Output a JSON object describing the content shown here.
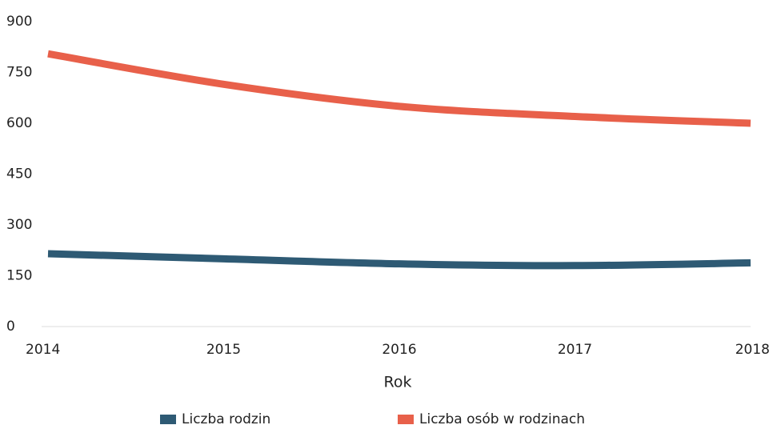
{
  "chart_data": {
    "type": "line",
    "x_label": "Rok",
    "categories": [
      "2014",
      "2015",
      "2016",
      "2017",
      "2018"
    ],
    "series": [
      {
        "name": "Liczba rodzin",
        "color": "#2e5a74",
        "values": [
          215,
          200,
          185,
          180,
          188
        ]
      },
      {
        "name": "Liczba osób w rodzinach",
        "color": "#e8604a",
        "values": [
          805,
          715,
          650,
          620,
          600
        ]
      }
    ],
    "ylim": [
      0,
      900
    ],
    "yticks": [
      0,
      150,
      300,
      450,
      600,
      750,
      900
    ]
  }
}
